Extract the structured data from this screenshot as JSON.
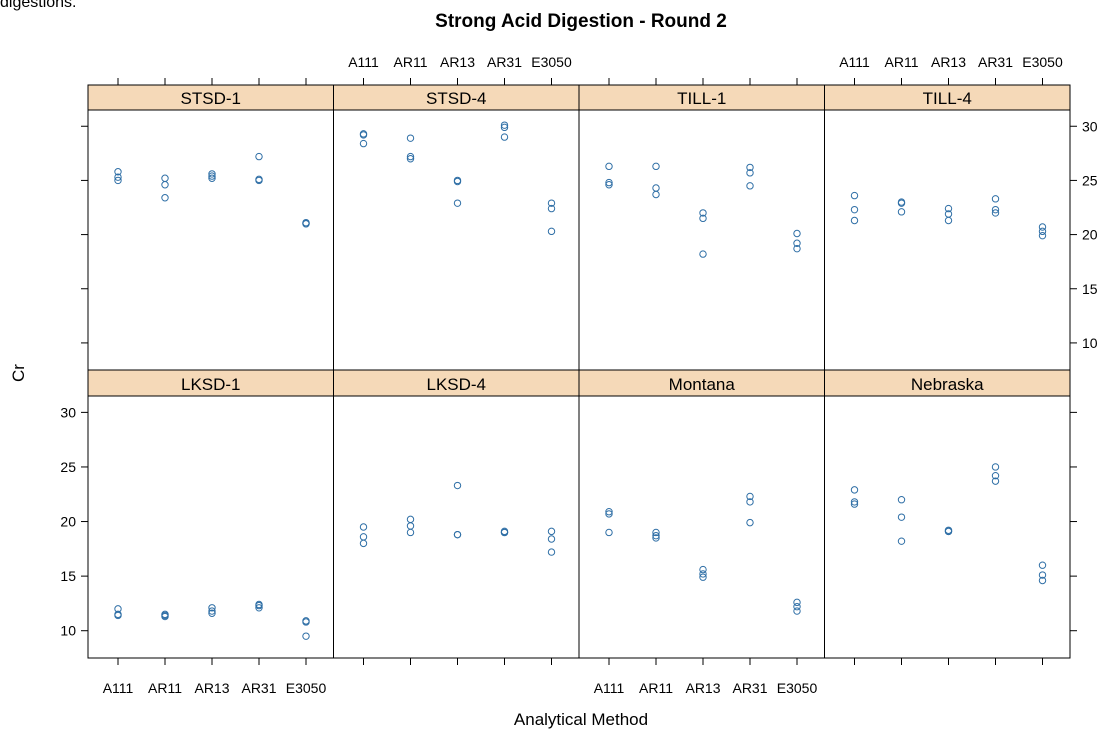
{
  "top_fragment": "digestions.",
  "chart_data": {
    "type": "scatter",
    "title": "Strong Acid Digestion - Round 2",
    "xlabel": "Analytical Method",
    "ylabel": "Cr",
    "categories": [
      "A111",
      "AR11",
      "AR13",
      "AR31",
      "E3050"
    ],
    "ylim": [
      7.5,
      31.5
    ],
    "yticks": [
      10,
      15,
      20,
      25,
      30
    ],
    "yticks_labels": [
      "10",
      "15",
      "20",
      "25",
      "30"
    ],
    "point_color": "#2f6fa6",
    "strip_color": "#f5d9b8",
    "layout": "4 columns x 2 rows",
    "panels": [
      {
        "name": "STSD-1",
        "points": [
          [
            25.8,
            25.3,
            25.0
          ],
          [
            25.2,
            24.6,
            23.4
          ],
          [
            25.6,
            25.4,
            25.2
          ],
          [
            27.2,
            25.1,
            25.0
          ],
          [
            21.1,
            21.0,
            21.0
          ]
        ]
      },
      {
        "name": "STSD-4",
        "points": [
          [
            29.3,
            29.2,
            28.4
          ],
          [
            28.9,
            27.2,
            27.0
          ],
          [
            25.0,
            24.9,
            22.9
          ],
          [
            30.1,
            29.9,
            29.0
          ],
          [
            22.9,
            22.4,
            20.3
          ]
        ]
      },
      {
        "name": "TILL-1",
        "points": [
          [
            26.3,
            24.8,
            24.6
          ],
          [
            26.3,
            24.3,
            23.7
          ],
          [
            22.0,
            21.5,
            18.2
          ],
          [
            26.2,
            25.7,
            24.5
          ],
          [
            20.1,
            19.2,
            18.7
          ]
        ]
      },
      {
        "name": "TILL-4",
        "points": [
          [
            23.6,
            22.3,
            21.3
          ],
          [
            23.0,
            22.9,
            22.1
          ],
          [
            22.4,
            21.9,
            21.3
          ],
          [
            23.3,
            22.3,
            22.0
          ],
          [
            20.7,
            20.3,
            19.9
          ]
        ]
      },
      {
        "name": "LKSD-1",
        "points": [
          [
            12.0,
            11.5,
            11.4
          ],
          [
            11.5,
            11.4,
            11.3
          ],
          [
            12.1,
            11.8,
            11.6
          ],
          [
            12.4,
            12.3,
            12.1
          ],
          [
            10.9,
            10.8,
            9.5
          ]
        ]
      },
      {
        "name": "LKSD-4",
        "points": [
          [
            19.5,
            18.6,
            18.0
          ],
          [
            20.2,
            19.6,
            19.0
          ],
          [
            23.3,
            18.8,
            18.8
          ],
          [
            19.1,
            19.0,
            19.0
          ],
          [
            19.1,
            18.4,
            17.2
          ]
        ]
      },
      {
        "name": "Montana",
        "points": [
          [
            20.9,
            20.7,
            19.0
          ],
          [
            19.0,
            18.7,
            18.5
          ],
          [
            15.6,
            15.2,
            14.9
          ],
          [
            22.3,
            21.8,
            19.9
          ],
          [
            12.6,
            12.2,
            11.8
          ]
        ]
      },
      {
        "name": "Nebraska",
        "points": [
          [
            22.9,
            21.8,
            21.6
          ],
          [
            22.0,
            20.4,
            18.2
          ],
          [
            19.2,
            19.1,
            19.1
          ],
          [
            25.0,
            24.2,
            23.7
          ],
          [
            16.0,
            15.1,
            14.6
          ]
        ]
      }
    ],
    "grid": false,
    "legend": "none"
  }
}
